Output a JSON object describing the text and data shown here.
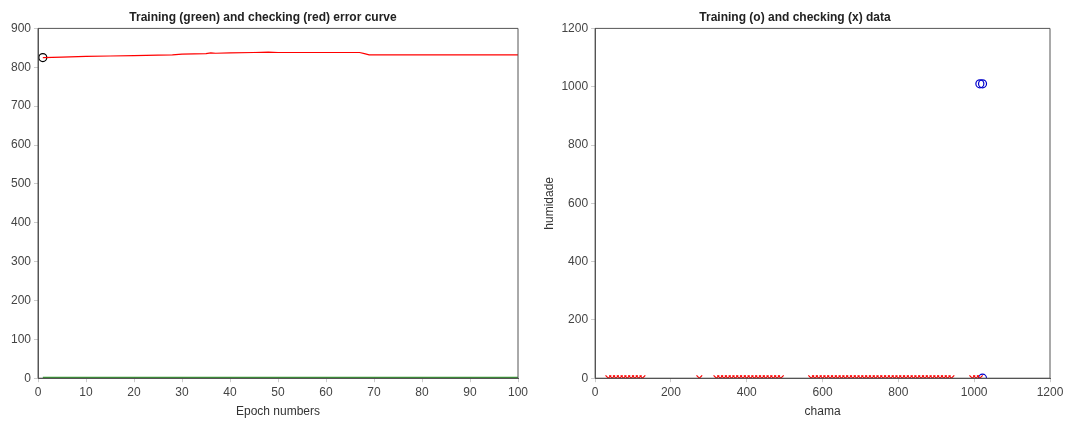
{
  "chart_data": [
    {
      "type": "line",
      "title": "Training (green) and checking (red) error curve",
      "xlabel": "Epoch numbers",
      "xlim": [
        0,
        100
      ],
      "xticks": [
        0,
        10,
        20,
        30,
        40,
        50,
        60,
        70,
        80,
        90,
        100
      ],
      "ylim": [
        0,
        900
      ],
      "yticks": [
        0,
        100,
        200,
        300,
        400,
        500,
        600,
        700,
        800,
        900
      ],
      "grid": false,
      "legend": false,
      "marker": "none",
      "line_style": "solid",
      "series": [
        {
          "color": "#ff0000",
          "x": [
            1,
            5,
            10,
            15,
            20,
            25,
            28,
            30,
            35,
            36,
            37,
            40,
            45,
            48,
            50,
            55,
            60,
            65,
            67,
            68,
            69,
            70,
            75,
            80,
            85,
            90,
            95,
            100
          ],
          "values": [
            825,
            826,
            828,
            829,
            830,
            831,
            832,
            834,
            835,
            837,
            836,
            837,
            838,
            839,
            838,
            838,
            838,
            838,
            838,
            835,
            832,
            832,
            832,
            832,
            832,
            832,
            832,
            832
          ]
        },
        {
          "color": "#33a02c",
          "x": [
            1,
            10,
            20,
            30,
            40,
            50,
            60,
            70,
            80,
            90,
            100
          ],
          "values": [
            2,
            2,
            2,
            2,
            2,
            2,
            2,
            2,
            2,
            2,
            2
          ]
        },
        {
          "type": "scatter",
          "color": "#000000",
          "marker": "circle",
          "x": [
            1
          ],
          "values": [
            825
          ]
        }
      ]
    },
    {
      "type": "scatter",
      "title": "Training (o) and checking (x) data",
      "xlabel": "chama",
      "ylabel": "humidade",
      "xlim": [
        0,
        1200
      ],
      "xticks": [
        0,
        200,
        400,
        600,
        800,
        1000,
        1200
      ],
      "ylim": [
        0,
        1200
      ],
      "yticks": [
        0,
        200,
        400,
        600,
        800,
        1000,
        1200
      ],
      "grid": false,
      "legend": false,
      "series": [
        {
          "color": "#ff0000",
          "marker": "cross",
          "x": [
            35,
            45,
            55,
            65,
            75,
            85,
            95,
            105,
            115,
            125,
            275,
            320,
            330,
            340,
            350,
            360,
            370,
            380,
            390,
            400,
            410,
            420,
            430,
            440,
            450,
            460,
            470,
            480,
            490,
            570,
            580,
            590,
            600,
            610,
            620,
            630,
            640,
            650,
            660,
            670,
            680,
            690,
            700,
            710,
            720,
            730,
            740,
            750,
            760,
            770,
            780,
            790,
            800,
            810,
            820,
            830,
            840,
            850,
            860,
            870,
            880,
            890,
            900,
            910,
            920,
            930,
            940,
            995,
            1005,
            1015
          ],
          "values": [
            0,
            0,
            0,
            0,
            0,
            0,
            0,
            0,
            0,
            0,
            0,
            0,
            0,
            0,
            0,
            0,
            0,
            0,
            0,
            0,
            0,
            0,
            0,
            0,
            0,
            0,
            0,
            0,
            0,
            0,
            0,
            0,
            0,
            0,
            0,
            0,
            0,
            0,
            0,
            0,
            0,
            0,
            0,
            0,
            0,
            0,
            0,
            0,
            0,
            0,
            0,
            0,
            0,
            0,
            0,
            0,
            0,
            0,
            0,
            0,
            0,
            0,
            0,
            0,
            0,
            0,
            0,
            0,
            0,
            0
          ]
        },
        {
          "color": "#0000cc",
          "marker": "circle",
          "x": [
            1015,
            1022,
            1022
          ],
          "values": [
            1010,
            1010,
            0
          ]
        }
      ]
    }
  ]
}
